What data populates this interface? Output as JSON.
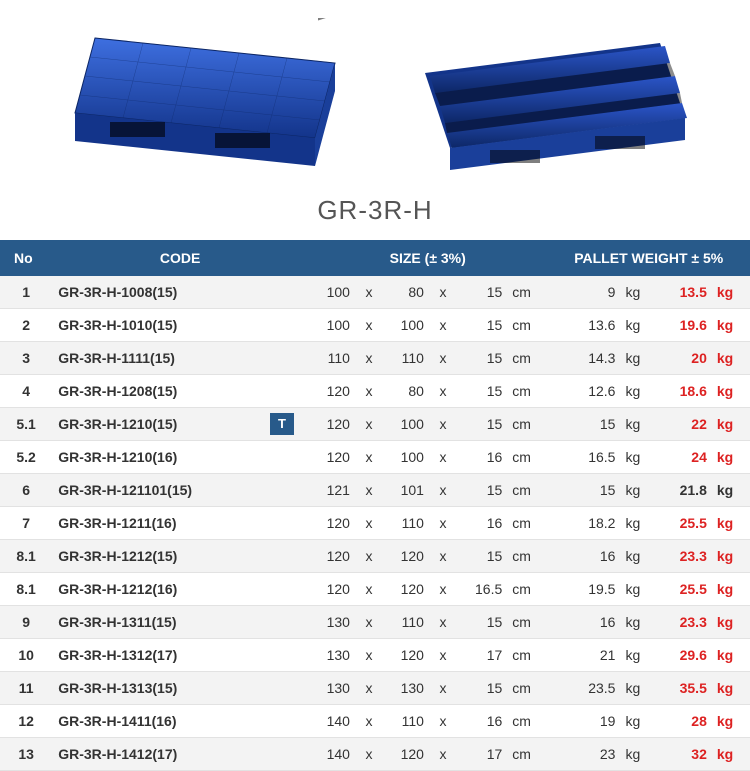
{
  "product_label": "GR-3R-H",
  "pallet_color": "#1f4fbf",
  "pallet_color_dark": "#13348a",
  "pallet_color_light": "#3e6fe0",
  "headers": {
    "no": "No",
    "code": "CODE",
    "size": "SIZE  (± 3%)",
    "weight": "PALLET WEIGHT ± 5%"
  },
  "size_unit": "cm",
  "weight_unit": "kg",
  "x_sep": "x",
  "t_badge": "T",
  "rows": [
    {
      "no": "1",
      "code": "GR-3R-H-1008(15)",
      "d1": "100",
      "d2": "80",
      "d3": "15",
      "w1": "9",
      "w2": "13.5",
      "w2_red": true,
      "badge": false
    },
    {
      "no": "2",
      "code": "GR-3R-H-1010(15)",
      "d1": "100",
      "d2": "100",
      "d3": "15",
      "w1": "13.6",
      "w2": "19.6",
      "w2_red": true,
      "badge": false
    },
    {
      "no": "3",
      "code": "GR-3R-H-1111(15)",
      "d1": "110",
      "d2": "110",
      "d3": "15",
      "w1": "14.3",
      "w2": "20",
      "w2_red": true,
      "badge": false
    },
    {
      "no": "4",
      "code": "GR-3R-H-1208(15)",
      "d1": "120",
      "d2": "80",
      "d3": "15",
      "w1": "12.6",
      "w2": "18.6",
      "w2_red": true,
      "badge": false
    },
    {
      "no": "5.1",
      "code": "GR-3R-H-1210(15)",
      "d1": "120",
      "d2": "100",
      "d3": "15",
      "w1": "15",
      "w2": "22",
      "w2_red": true,
      "badge": true
    },
    {
      "no": "5.2",
      "code": "GR-3R-H-1210(16)",
      "d1": "120",
      "d2": "100",
      "d3": "16",
      "w1": "16.5",
      "w2": "24",
      "w2_red": true,
      "badge": false
    },
    {
      "no": "6",
      "code": "GR-3R-H-121101(15)",
      "d1": "121",
      "d2": "101",
      "d3": "15",
      "w1": "15",
      "w2": "21.8",
      "w2_red": false,
      "badge": false
    },
    {
      "no": "7",
      "code": "GR-3R-H-1211(16)",
      "d1": "120",
      "d2": "110",
      "d3": "16",
      "w1": "18.2",
      "w2": "25.5",
      "w2_red": true,
      "badge": false
    },
    {
      "no": "8.1",
      "code": "GR-3R-H-1212(15)",
      "d1": "120",
      "d2": "120",
      "d3": "15",
      "w1": "16",
      "w2": "23.3",
      "w2_red": true,
      "badge": false
    },
    {
      "no": "8.1",
      "code": "GR-3R-H-1212(16)",
      "d1": "120",
      "d2": "120",
      "d3": "16.5",
      "w1": "19.5",
      "w2": "25.5",
      "w2_red": true,
      "badge": false
    },
    {
      "no": "9",
      "code": "GR-3R-H-1311(15)",
      "d1": "130",
      "d2": "110",
      "d3": "15",
      "w1": "16",
      "w2": "23.3",
      "w2_red": true,
      "badge": false
    },
    {
      "no": "10",
      "code": "GR-3R-H-1312(17)",
      "d1": "130",
      "d2": "120",
      "d3": "17",
      "w1": "21",
      "w2": "29.6",
      "w2_red": true,
      "badge": false
    },
    {
      "no": "11",
      "code": "GR-3R-H-1313(15)",
      "d1": "130",
      "d2": "130",
      "d3": "15",
      "w1": "23.5",
      "w2": "35.5",
      "w2_red": true,
      "badge": false
    },
    {
      "no": "12",
      "code": "GR-3R-H-1411(16)",
      "d1": "140",
      "d2": "110",
      "d3": "16",
      "w1": "19",
      "w2": "28",
      "w2_red": true,
      "badge": false
    },
    {
      "no": "13",
      "code": "GR-3R-H-1412(17)",
      "d1": "140",
      "d2": "120",
      "d3": "17",
      "w1": "23",
      "w2": "32",
      "w2_red": true,
      "badge": false
    }
  ]
}
